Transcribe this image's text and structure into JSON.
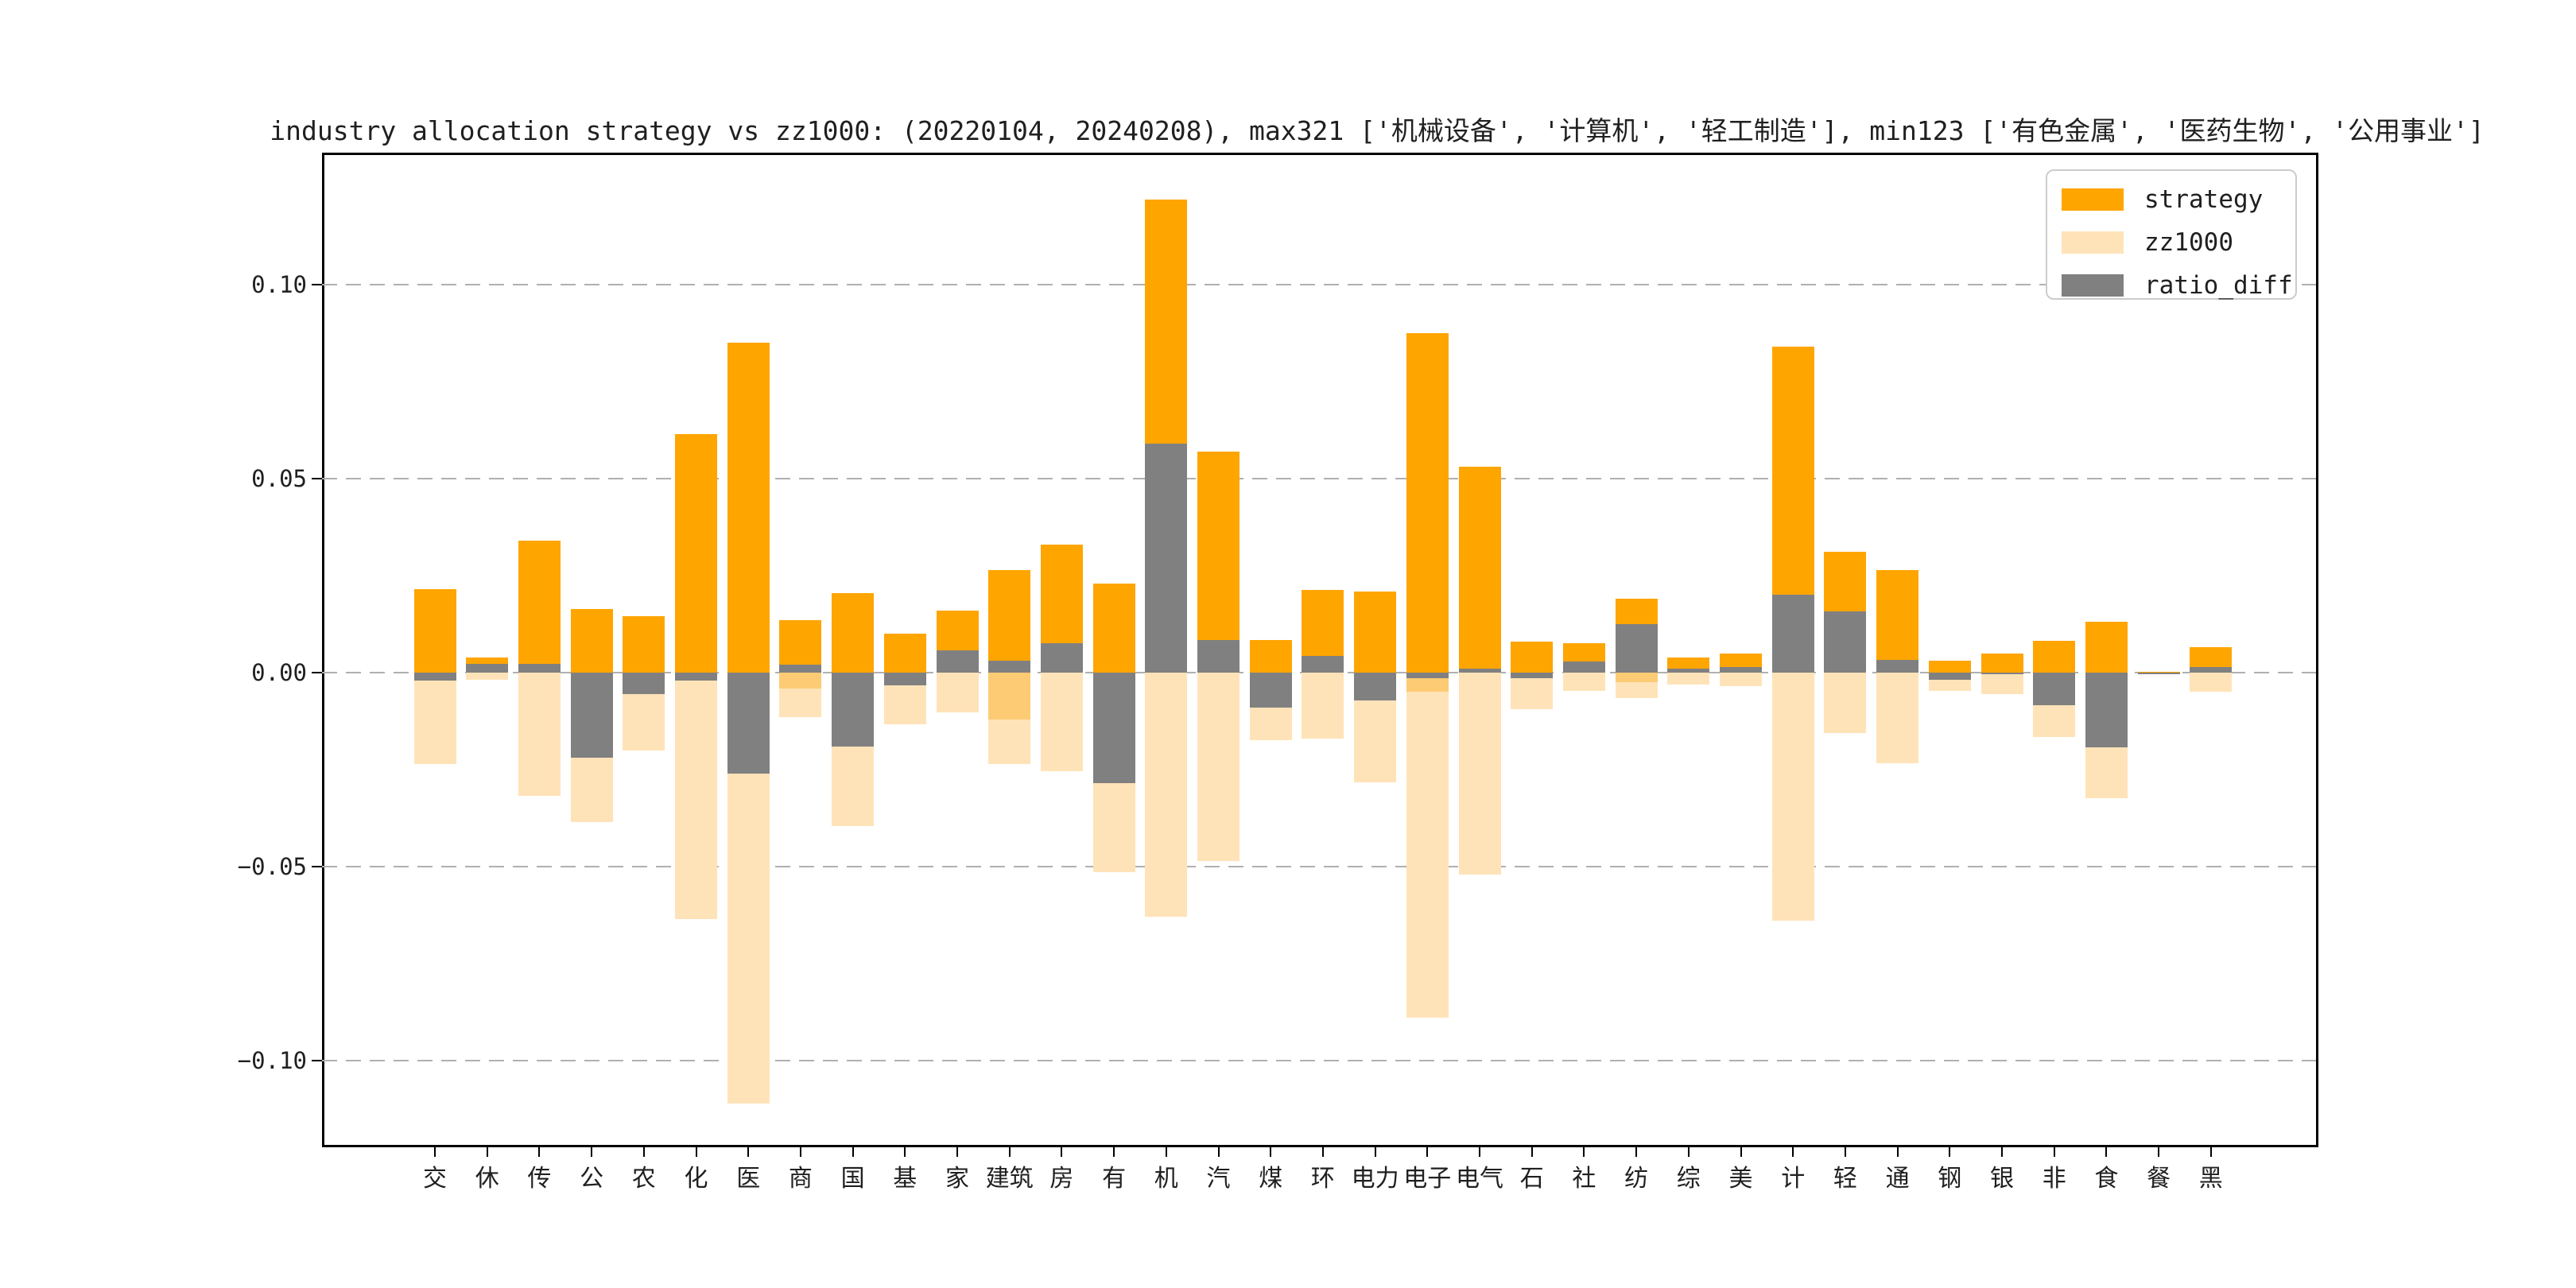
{
  "title": "industry allocation strategy vs zz1000: (20220104, 20240208), max321 ['机械设备', '计算机', '轻工制造'], min123 ['有色金属', '医药生物', '公用事业']",
  "legend": {
    "items": [
      {
        "label": "strategy",
        "color": "#FFA500"
      },
      {
        "label": "zz1000",
        "color": "#FFE3B8"
      },
      {
        "label": "ratio_diff",
        "color": "#808080"
      }
    ]
  },
  "colors": {
    "strategy": "#FFA500",
    "zz1000": "#FFE3B8",
    "ratio_diff": "#808080",
    "overlap": "#FDCB74",
    "grid": "#b0b0b0",
    "axis": "#000000",
    "legend_border": "#cccccc",
    "text": "#202020",
    "background": "#ffffff"
  },
  "chart_data": {
    "type": "bar",
    "title": "industry allocation strategy vs zz1000: (20220104, 20240208), max321 ['机械设备', '计算机', '轻工制造'], min123 ['有色金属', '医药生物', '公用事业']",
    "categories": [
      "交",
      "休",
      "传",
      "公",
      "农",
      "化",
      "医",
      "商",
      "国",
      "基",
      "家",
      "建筑",
      "房",
      "有",
      "机",
      "汽",
      "煤",
      "环",
      "电力",
      "电子",
      "电气",
      "石",
      "社",
      "纺",
      "综",
      "美",
      "计",
      "轻",
      "通",
      "钢",
      "银",
      "非",
      "食",
      "餐",
      "黑"
    ],
    "series": [
      {
        "name": "strategy",
        "direction": "up",
        "values": [
          0.0215,
          0.004,
          0.034,
          0.0165,
          0.0145,
          0.0615,
          0.085,
          0.0135,
          0.0205,
          0.01,
          0.016,
          0.0265,
          0.033,
          0.023,
          0.122,
          0.057,
          0.0085,
          0.0213,
          0.021,
          0.0875,
          0.053,
          0.008,
          0.0076,
          0.019,
          0.004,
          0.005,
          0.084,
          0.0312,
          0.0265,
          0.003,
          0.005,
          0.0082,
          0.0132,
          0.0002,
          0.0065
        ]
      },
      {
        "name": "zz1000",
        "direction": "down-mirrored",
        "values": [
          0.0235,
          0.0018,
          0.0317,
          0.0385,
          0.02,
          0.0635,
          0.111,
          0.0115,
          0.0395,
          0.0133,
          0.0102,
          0.0235,
          0.0255,
          0.0515,
          0.063,
          0.0485,
          0.0175,
          0.017,
          0.0282,
          0.089,
          0.052,
          0.0095,
          0.0048,
          0.0065,
          0.003,
          0.0035,
          0.064,
          0.0155,
          0.0233,
          0.0048,
          0.0055,
          0.0165,
          0.0324,
          0.0005,
          0.005
        ]
      },
      {
        "name": "ratio_diff",
        "direction": "signed",
        "values": [
          -0.002,
          0.0022,
          0.0023,
          -0.022,
          -0.0055,
          -0.002,
          -0.026,
          0.002,
          -0.019,
          -0.0033,
          0.0058,
          0.003,
          0.0075,
          -0.0285,
          0.059,
          0.0085,
          -0.009,
          0.0043,
          -0.0072,
          -0.0015,
          0.001,
          -0.0015,
          0.0028,
          0.0125,
          0.001,
          0.0015,
          0.02,
          0.0157,
          0.0032,
          -0.0018,
          -0.0005,
          -0.0083,
          -0.0192,
          -0.0003,
          0.0015
        ]
      }
    ],
    "overlap_below_zero": [
      0,
      0,
      0,
      0,
      0,
      0,
      0,
      0.004,
      0,
      0,
      0,
      0.012,
      0,
      0,
      0,
      0,
      0,
      0,
      0,
      0.005,
      0,
      0,
      0,
      0.0024,
      0,
      0,
      0,
      0,
      0,
      0,
      0,
      0,
      0,
      0,
      0
    ],
    "yticks": [
      {
        "label": "0.10",
        "value": 0.1
      },
      {
        "label": "0.05",
        "value": 0.05
      },
      {
        "label": "0.00",
        "value": 0.0
      },
      {
        "label": "−0.05",
        "value": -0.05
      },
      {
        "label": "−0.10",
        "value": -0.1
      }
    ],
    "ylim": [
      -0.122,
      0.134
    ],
    "grid": "dashed-horizontal",
    "legend_position": "upper right"
  }
}
